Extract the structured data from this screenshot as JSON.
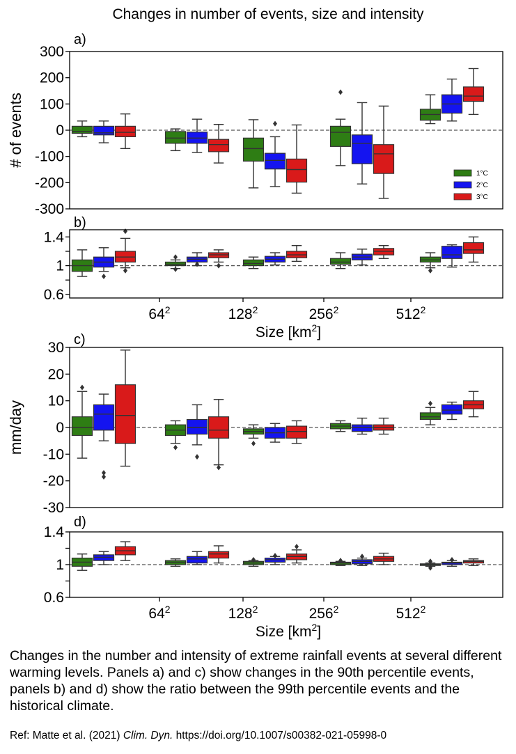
{
  "figure": {
    "title": "Changes in number of events, size and intensity",
    "caption": "Changes in the number and intensity of extreme rainfall events at several different warming levels. Panels a) and c) show changes in the 90th percentile events, panels b) and d) show the ratio between the 99th percentile events and the historical climate.",
    "ref_prefix": "Ref: Matte et al. (2021) ",
    "ref_journal": "Clim. Dyn.",
    "ref_doi": " https://doi.org/10.1007/s00382-021-05998-0"
  },
  "colors": {
    "1°C": "#2e7d14",
    "2°C": "#1414f0",
    "3°C": "#d91a1a"
  },
  "chart_data": [
    {
      "panel": "a)",
      "type": "box",
      "ylabel": "# of events",
      "ylim": [
        -300,
        300
      ],
      "yticks": [
        -300,
        -200,
        -100,
        0,
        100,
        200,
        300
      ],
      "ytick_labels": [
        "-300",
        "-200",
        "-100",
        "0",
        "100",
        "200",
        "300"
      ],
      "groups": 5,
      "legend": {
        "entries": [
          "1°C",
          "2°C",
          "3°C"
        ],
        "placement": "bottom-right"
      },
      "boxes": [
        {
          "group": 0,
          "series": "1°C",
          "q1": -12,
          "median": -5,
          "q3": 15,
          "wlo": -25,
          "whi": 35,
          "outliers": []
        },
        {
          "group": 0,
          "series": "2°C",
          "q1": -18,
          "median": -10,
          "q3": 15,
          "wlo": -48,
          "whi": 35,
          "outliers": []
        },
        {
          "group": 0,
          "series": "3°C",
          "q1": -25,
          "median": -8,
          "q3": 15,
          "wlo": -70,
          "whi": 62,
          "outliers": []
        },
        {
          "group": 1,
          "series": "1°C",
          "q1": -50,
          "median": -30,
          "q3": -5,
          "wlo": -78,
          "whi": 5,
          "outliers": []
        },
        {
          "group": 1,
          "series": "2°C",
          "q1": -50,
          "median": -30,
          "q3": -7,
          "wlo": -85,
          "whi": 42,
          "outliers": []
        },
        {
          "group": 1,
          "series": "3°C",
          "q1": -82,
          "median": -55,
          "q3": -35,
          "wlo": -125,
          "whi": 22,
          "outliers": []
        },
        {
          "group": 2,
          "series": "1°C",
          "q1": -118,
          "median": -70,
          "q3": -30,
          "wlo": -220,
          "whi": 40,
          "outliers": []
        },
        {
          "group": 2,
          "series": "2°C",
          "q1": -148,
          "median": -115,
          "q3": -88,
          "wlo": -215,
          "whi": -25,
          "outliers": [
            25
          ]
        },
        {
          "group": 2,
          "series": "3°C",
          "q1": -198,
          "median": -150,
          "q3": -110,
          "wlo": -240,
          "whi": 20,
          "outliers": []
        },
        {
          "group": 3,
          "series": "1°C",
          "q1": -62,
          "median": -8,
          "q3": 15,
          "wlo": -135,
          "whi": 42,
          "outliers": [
            145
          ]
        },
        {
          "group": 3,
          "series": "2°C",
          "q1": -128,
          "median": -50,
          "q3": -18,
          "wlo": -205,
          "whi": 105,
          "outliers": []
        },
        {
          "group": 3,
          "series": "3°C",
          "q1": -165,
          "median": -90,
          "q3": -55,
          "wlo": -260,
          "whi": 92,
          "outliers": []
        },
        {
          "group": 4,
          "series": "1°C",
          "q1": 38,
          "median": 60,
          "q3": 80,
          "wlo": 25,
          "whi": 135,
          "outliers": []
        },
        {
          "group": 4,
          "series": "2°C",
          "q1": 65,
          "median": 100,
          "q3": 135,
          "wlo": 35,
          "whi": 195,
          "outliers": []
        },
        {
          "group": 4,
          "series": "3°C",
          "q1": 110,
          "median": 130,
          "q3": 165,
          "wlo": 60,
          "whi": 235,
          "outliers": []
        }
      ]
    },
    {
      "panel": "b)",
      "type": "box",
      "ylabel": "",
      "ylim": [
        0.55,
        1.5
      ],
      "yticks": [
        0.6,
        0.8,
        1.0,
        1.2,
        1.4
      ],
      "ytick_labels": [
        "0.6",
        "",
        "1",
        "",
        "1.4"
      ],
      "groups": 5,
      "boxes": [
        {
          "group": 0,
          "series": "1°C",
          "q1": 0.92,
          "median": 1.0,
          "q3": 1.08,
          "wlo": 0.85,
          "whi": 1.22,
          "outliers": []
        },
        {
          "group": 0,
          "series": "2°C",
          "q1": 0.98,
          "median": 1.05,
          "q3": 1.12,
          "wlo": 0.92,
          "whi": 1.25,
          "outliers": [
            0.85
          ]
        },
        {
          "group": 0,
          "series": "3°C",
          "q1": 1.05,
          "median": 1.12,
          "q3": 1.2,
          "wlo": 0.97,
          "whi": 1.38,
          "outliers": [
            1.48,
            0.93
          ]
        },
        {
          "group": 1,
          "series": "1°C",
          "q1": 1.0,
          "median": 1.02,
          "q3": 1.05,
          "wlo": 0.96,
          "whi": 1.08,
          "outliers": [
            1.12,
            0.95
          ]
        },
        {
          "group": 1,
          "series": "2°C",
          "q1": 1.05,
          "median": 1.09,
          "q3": 1.12,
          "wlo": 1.0,
          "whi": 1.18,
          "outliers": [
            1.02
          ]
        },
        {
          "group": 1,
          "series": "3°C",
          "q1": 1.11,
          "median": 1.15,
          "q3": 1.18,
          "wlo": 1.05,
          "whi": 1.22,
          "outliers": [
            1.0
          ]
        },
        {
          "group": 2,
          "series": "1°C",
          "q1": 1.0,
          "median": 1.03,
          "q3": 1.08,
          "wlo": 0.96,
          "whi": 1.12,
          "outliers": []
        },
        {
          "group": 2,
          "series": "2°C",
          "q1": 1.05,
          "median": 1.09,
          "q3": 1.13,
          "wlo": 1.01,
          "whi": 1.18,
          "outliers": []
        },
        {
          "group": 2,
          "series": "3°C",
          "q1": 1.11,
          "median": 1.15,
          "q3": 1.2,
          "wlo": 1.06,
          "whi": 1.28,
          "outliers": []
        },
        {
          "group": 3,
          "series": "1°C",
          "q1": 1.02,
          "median": 1.05,
          "q3": 1.1,
          "wlo": 0.96,
          "whi": 1.18,
          "outliers": []
        },
        {
          "group": 3,
          "series": "2°C",
          "q1": 1.08,
          "median": 1.12,
          "q3": 1.16,
          "wlo": 1.01,
          "whi": 1.23,
          "outliers": []
        },
        {
          "group": 3,
          "series": "3°C",
          "q1": 1.15,
          "median": 1.2,
          "q3": 1.24,
          "wlo": 1.1,
          "whi": 1.28,
          "outliers": []
        },
        {
          "group": 4,
          "series": "1°C",
          "q1": 1.05,
          "median": 1.08,
          "q3": 1.12,
          "wlo": 0.97,
          "whi": 1.18,
          "outliers": [
            0.93
          ]
        },
        {
          "group": 4,
          "series": "2°C",
          "q1": 1.1,
          "median": 1.15,
          "q3": 1.27,
          "wlo": 0.98,
          "whi": 1.29,
          "outliers": []
        },
        {
          "group": 4,
          "series": "3°C",
          "q1": 1.17,
          "median": 1.22,
          "q3": 1.32,
          "wlo": 1.05,
          "whi": 1.4,
          "outliers": []
        }
      ],
      "xtick_labels": [
        {
          "base": "64",
          "exp": "2"
        },
        {
          "base": "128",
          "exp": "2"
        },
        {
          "base": "256",
          "exp": "2"
        },
        {
          "base": "512",
          "exp": "2"
        }
      ],
      "xlabel": {
        "text": "Size [km",
        "sup": "2",
        "close": "]"
      }
    },
    {
      "panel": "c)",
      "type": "box",
      "ylabel": "mm/day",
      "ylim": [
        -30,
        30
      ],
      "yticks": [
        -30,
        -20,
        -10,
        0,
        10,
        20,
        30
      ],
      "ytick_labels": [
        "-30",
        "-20",
        "-10",
        "0",
        "10",
        "20",
        "30"
      ],
      "groups": 5,
      "boxes": [
        {
          "group": 0,
          "series": "1°C",
          "q1": -3,
          "median": 0,
          "q3": 4,
          "wlo": -11.5,
          "whi": 13.5,
          "outliers": [
            15
          ]
        },
        {
          "group": 0,
          "series": "2°C",
          "q1": -1,
          "median": 5,
          "q3": 8.5,
          "wlo": -5,
          "whi": 12.5,
          "outliers": [
            -17,
            -18.5
          ]
        },
        {
          "group": 0,
          "series": "3°C",
          "q1": -6,
          "median": 4.5,
          "q3": 16,
          "wlo": -14.5,
          "whi": 29,
          "outliers": []
        },
        {
          "group": 1,
          "series": "1°C",
          "q1": -3,
          "median": -1,
          "q3": 1,
          "wlo": -6,
          "whi": 2.5,
          "outliers": [
            -7.5
          ]
        },
        {
          "group": 1,
          "series": "2°C",
          "q1": -2.5,
          "median": 0,
          "q3": 3,
          "wlo": -6.5,
          "whi": 8.5,
          "outliers": [
            -11
          ]
        },
        {
          "group": 1,
          "series": "3°C",
          "q1": -4,
          "median": -1,
          "q3": 4,
          "wlo": -14,
          "whi": 10.5,
          "outliers": [
            -15
          ]
        },
        {
          "group": 2,
          "series": "1°C",
          "q1": -2.5,
          "median": -1.5,
          "q3": -0.5,
          "wlo": -4,
          "whi": 1,
          "outliers": [
            -6
          ]
        },
        {
          "group": 2,
          "series": "2°C",
          "q1": -4,
          "median": -2,
          "q3": 0,
          "wlo": -5.5,
          "whi": 1.5,
          "outliers": []
        },
        {
          "group": 2,
          "series": "3°C",
          "q1": -4,
          "median": -1.5,
          "q3": 0.5,
          "wlo": -6,
          "whi": 2.5,
          "outliers": []
        },
        {
          "group": 3,
          "series": "1°C",
          "q1": -0.5,
          "median": 0.5,
          "q3": 1.5,
          "wlo": -1.5,
          "whi": 2.5,
          "outliers": []
        },
        {
          "group": 3,
          "series": "2°C",
          "q1": -1.5,
          "median": 0,
          "q3": 1,
          "wlo": -2.5,
          "whi": 3.5,
          "outliers": []
        },
        {
          "group": 3,
          "series": "3°C",
          "q1": -1,
          "median": 0,
          "q3": 1,
          "wlo": -2.5,
          "whi": 3.5,
          "outliers": []
        },
        {
          "group": 4,
          "series": "1°C",
          "q1": 3,
          "median": 4,
          "q3": 5.5,
          "wlo": 1,
          "whi": 7.5,
          "outliers": [
            9
          ]
        },
        {
          "group": 4,
          "series": "2°C",
          "q1": 5,
          "median": 6.5,
          "q3": 8.5,
          "wlo": 3,
          "whi": 9.5,
          "outliers": []
        },
        {
          "group": 4,
          "series": "3°C",
          "q1": 7,
          "median": 8.5,
          "q3": 10,
          "wlo": 4,
          "whi": 13.5,
          "outliers": []
        }
      ]
    },
    {
      "panel": "d)",
      "type": "box",
      "ylabel": "",
      "ylim": [
        0.6,
        1.4
      ],
      "yticks": [
        0.6,
        0.8,
        1.0,
        1.2,
        1.4
      ],
      "ytick_labels": [
        "0.6",
        "",
        "1",
        "",
        "1.4"
      ],
      "groups": 5,
      "boxes": [
        {
          "group": 0,
          "series": "1°C",
          "q1": 0.98,
          "median": 1.03,
          "q3": 1.08,
          "wlo": 0.93,
          "whi": 1.13,
          "outliers": []
        },
        {
          "group": 0,
          "series": "2°C",
          "q1": 1.05,
          "median": 1.09,
          "q3": 1.12,
          "wlo": 1.0,
          "whi": 1.16,
          "outliers": []
        },
        {
          "group": 0,
          "series": "3°C",
          "q1": 1.12,
          "median": 1.17,
          "q3": 1.22,
          "wlo": 1.05,
          "whi": 1.28,
          "outliers": []
        },
        {
          "group": 1,
          "series": "1°C",
          "q1": 1.0,
          "median": 1.03,
          "q3": 1.05,
          "wlo": 0.98,
          "whi": 1.07,
          "outliers": []
        },
        {
          "group": 1,
          "series": "2°C",
          "q1": 1.02,
          "median": 1.07,
          "q3": 1.1,
          "wlo": 1.0,
          "whi": 1.16,
          "outliers": []
        },
        {
          "group": 1,
          "series": "3°C",
          "q1": 1.08,
          "median": 1.13,
          "q3": 1.16,
          "wlo": 1.02,
          "whi": 1.23,
          "outliers": []
        },
        {
          "group": 2,
          "series": "1°C",
          "q1": 1.0,
          "median": 1.02,
          "q3": 1.04,
          "wlo": 0.98,
          "whi": 1.05,
          "outliers": [
            1.06
          ]
        },
        {
          "group": 2,
          "series": "2°C",
          "q1": 1.03,
          "median": 1.06,
          "q3": 1.08,
          "wlo": 1.0,
          "whi": 1.1,
          "outliers": [
            1.11
          ]
        },
        {
          "group": 2,
          "series": "3°C",
          "q1": 1.06,
          "median": 1.1,
          "q3": 1.13,
          "wlo": 1.02,
          "whi": 1.18,
          "outliers": [
            1.22
          ]
        },
        {
          "group": 3,
          "series": "1°C",
          "q1": 1.0,
          "median": 1.02,
          "q3": 1.03,
          "wlo": 0.99,
          "whi": 1.04,
          "outliers": [
            1.05
          ]
        },
        {
          "group": 3,
          "series": "2°C",
          "q1": 1.01,
          "median": 1.04,
          "q3": 1.06,
          "wlo": 0.99,
          "whi": 1.08,
          "outliers": [
            1.1
          ]
        },
        {
          "group": 3,
          "series": "3°C",
          "q1": 1.04,
          "median": 1.07,
          "q3": 1.1,
          "wlo": 1.0,
          "whi": 1.14,
          "outliers": []
        },
        {
          "group": 4,
          "series": "1°C",
          "q1": 0.99,
          "median": 1.0,
          "q3": 1.01,
          "wlo": 0.98,
          "whi": 1.02,
          "outliers": [
            0.96,
            1.04
          ]
        },
        {
          "group": 4,
          "series": "2°C",
          "q1": 1.0,
          "median": 1.02,
          "q3": 1.03,
          "wlo": 0.98,
          "whi": 1.05,
          "outliers": [
            1.06
          ]
        },
        {
          "group": 4,
          "series": "3°C",
          "q1": 1.02,
          "median": 1.04,
          "q3": 1.05,
          "wlo": 0.99,
          "whi": 1.07,
          "outliers": []
        }
      ],
      "xtick_labels": [
        {
          "base": "64",
          "exp": "2"
        },
        {
          "base": "128",
          "exp": "2"
        },
        {
          "base": "256",
          "exp": "2"
        },
        {
          "base": "512",
          "exp": "2"
        }
      ],
      "xlabel": {
        "text": "Size [km",
        "sup": "2",
        "close": "]"
      }
    }
  ]
}
